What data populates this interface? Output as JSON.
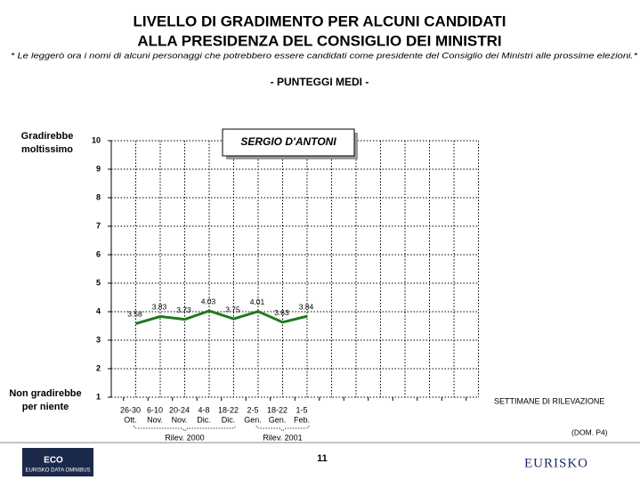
{
  "title_lines": [
    "LIVELLO DI GRADIMENTO PER ALCUNI CANDIDATI",
    "ALLA PRESIDENZA DEL CONSIGLIO DEI MINISTRI"
  ],
  "note": "* Le leggerò ora i nomi di alcuni personaggi che potrebbero essere candidati come presidente del Consiglio dei Ministri alle prossime elezioni.*",
  "chart_data": {
    "type": "line",
    "subtitle": "- PUNTEGGI MEDI -",
    "categories": [
      "26-30",
      "6-10",
      "20-24",
      "4-8",
      "18-22",
      "2-5",
      "18-22",
      "1-5",
      null,
      null,
      null,
      null,
      null,
      null,
      null
    ],
    "category_sublabels": [
      "Ott.",
      "Nov.",
      "Nov.",
      "Dic.",
      "Dic.",
      "Gen.",
      "Gen.",
      "Feb.",
      null,
      null,
      null,
      null,
      null,
      null,
      null
    ],
    "groups": [
      "Rilev. 2000",
      "Rilev. 2001"
    ],
    "series": [
      {
        "name": "SERGIO D'ANTONI",
        "color": "#1f7a1f",
        "values": [
          3.58,
          3.83,
          3.73,
          4.03,
          3.75,
          4.01,
          3.63,
          3.84,
          null,
          null,
          null,
          null,
          null,
          null,
          null
        ]
      }
    ],
    "ylim": [
      1,
      10
    ],
    "yticks": [
      1,
      2,
      3,
      4,
      5,
      6,
      7,
      8,
      9,
      10
    ],
    "grid": true,
    "y_label_top": [
      "Gradirebbe",
      "moltissimo"
    ],
    "y_label_bottom": [
      "Non gradirebbe",
      "per niente"
    ],
    "x_label": "SETTIMANE DI RILEVAZIONE",
    "source_note": "(DOM. P4)"
  },
  "page_number": "11",
  "logo_left": [
    "ECO",
    "EURISKO DATA OMNIBUS"
  ],
  "logo_right": "EURISKO"
}
